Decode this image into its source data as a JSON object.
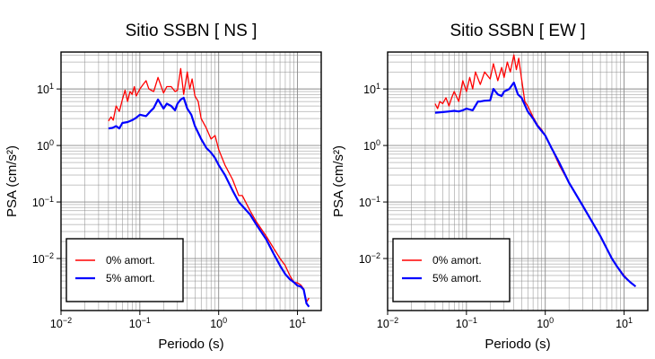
{
  "chart_data": [
    {
      "type": "line",
      "title": "Sitio SSBN [ NS ]",
      "xlabel": "Periodo (s)",
      "ylabel": "PSA (cm/s²)",
      "xscale": "log",
      "yscale": "log",
      "xlim": [
        0.01,
        20
      ],
      "ylim": [
        0.0012,
        45
      ],
      "grid": true,
      "legend_position": "bottom-left",
      "x_ticks": [
        {
          "value": 0.01,
          "base": "10",
          "exp": "−2"
        },
        {
          "value": 0.1,
          "base": "10",
          "exp": "−1"
        },
        {
          "value": 1,
          "base": "10",
          "exp": "0"
        },
        {
          "value": 10,
          "base": "10",
          "exp": "1"
        }
      ],
      "y_ticks": [
        {
          "value": 0.01,
          "base": "10",
          "exp": "−2"
        },
        {
          "value": 0.1,
          "base": "10",
          "exp": "−1"
        },
        {
          "value": 1,
          "base": "10",
          "exp": "0"
        },
        {
          "value": 10,
          "base": "10",
          "exp": "1"
        }
      ],
      "series": [
        {
          "name": "0% amort.",
          "color": "#ff0000",
          "x": [
            0.04,
            0.043,
            0.046,
            0.05,
            0.055,
            0.06,
            0.065,
            0.07,
            0.075,
            0.08,
            0.085,
            0.09,
            0.1,
            0.11,
            0.12,
            0.13,
            0.15,
            0.17,
            0.2,
            0.22,
            0.25,
            0.28,
            0.3,
            0.33,
            0.36,
            0.4,
            0.43,
            0.46,
            0.5,
            0.55,
            0.6,
            0.7,
            0.8,
            0.9,
            1.0,
            1.2,
            1.5,
            1.8,
            2.0,
            2.5,
            3.0,
            4.0,
            5.0,
            6.0,
            7.0,
            8.0,
            9.0,
            10.0,
            11.0,
            12.0,
            13.0,
            14.0
          ],
          "y": [
            2.7,
            3.2,
            2.8,
            5.0,
            4.0,
            6.5,
            9.5,
            6.0,
            9.0,
            8.0,
            11.0,
            7.5,
            10.0,
            12.0,
            14.0,
            10.0,
            9.0,
            16.0,
            8.5,
            11.0,
            11.0,
            9.0,
            9.5,
            23.0,
            8.0,
            20.0,
            10.0,
            15.0,
            7.5,
            6.0,
            3.0,
            2.0,
            1.3,
            1.5,
            0.85,
            0.45,
            0.25,
            0.13,
            0.13,
            0.07,
            0.045,
            0.025,
            0.015,
            0.01,
            0.0075,
            0.005,
            0.0038,
            0.0037,
            0.0034,
            0.0029,
            0.0017,
            0.002
          ]
        },
        {
          "name": "5% amort.",
          "color": "#0000ff",
          "x": [
            0.04,
            0.045,
            0.05,
            0.055,
            0.06,
            0.07,
            0.08,
            0.09,
            0.1,
            0.12,
            0.14,
            0.15,
            0.17,
            0.2,
            0.22,
            0.25,
            0.28,
            0.3,
            0.33,
            0.36,
            0.4,
            0.45,
            0.5,
            0.6,
            0.7,
            0.8,
            0.9,
            1.0,
            1.2,
            1.5,
            1.8,
            2.0,
            2.5,
            3.0,
            4.0,
            5.0,
            6.0,
            7.0,
            8.0,
            9.0,
            10.0,
            11.0,
            12.0,
            13.0,
            14.0
          ],
          "y": [
            2.0,
            2.05,
            2.2,
            2.0,
            2.5,
            2.6,
            2.8,
            3.1,
            3.5,
            3.3,
            4.2,
            4.6,
            6.5,
            4.5,
            5.5,
            5.0,
            4.2,
            5.5,
            6.5,
            7.0,
            4.5,
            3.5,
            2.2,
            1.3,
            0.9,
            0.75,
            0.6,
            0.45,
            0.3,
            0.16,
            0.1,
            0.085,
            0.06,
            0.04,
            0.022,
            0.012,
            0.0075,
            0.0053,
            0.0043,
            0.0038,
            0.0033,
            0.0032,
            0.0028,
            0.0016,
            0.0014
          ]
        }
      ]
    },
    {
      "type": "line",
      "title": "Sitio SSBN [ EW ]",
      "xlabel": "Periodo (s)",
      "ylabel": "PSA (cm/s²)",
      "xscale": "log",
      "yscale": "log",
      "xlim": [
        0.01,
        20
      ],
      "ylim": [
        0.0012,
        45
      ],
      "grid": true,
      "legend_position": "bottom-left",
      "x_ticks": [
        {
          "value": 0.01,
          "base": "10",
          "exp": "−2"
        },
        {
          "value": 0.1,
          "base": "10",
          "exp": "−1"
        },
        {
          "value": 1,
          "base": "10",
          "exp": "0"
        },
        {
          "value": 10,
          "base": "10",
          "exp": "1"
        }
      ],
      "y_ticks": [
        {
          "value": 0.01,
          "base": "10",
          "exp": "−2"
        },
        {
          "value": 0.1,
          "base": "10",
          "exp": "−1"
        },
        {
          "value": 1,
          "base": "10",
          "exp": "0"
        },
        {
          "value": 10,
          "base": "10",
          "exp": "1"
        }
      ],
      "series": [
        {
          "name": "0% amort.",
          "color": "#ff0000",
          "x": [
            0.04,
            0.043,
            0.046,
            0.05,
            0.055,
            0.06,
            0.065,
            0.07,
            0.08,
            0.09,
            0.1,
            0.11,
            0.12,
            0.13,
            0.15,
            0.17,
            0.2,
            0.22,
            0.25,
            0.28,
            0.3,
            0.33,
            0.36,
            0.4,
            0.43,
            0.46,
            0.5,
            0.55,
            0.6,
            0.7,
            0.8,
            0.9,
            1.0,
            1.2,
            1.5,
            2.0,
            3.0,
            5.0,
            7.0,
            8.0,
            10.0,
            12.0,
            14.0
          ],
          "y": [
            5.5,
            4.5,
            6.0,
            5.5,
            7.0,
            5.0,
            7.0,
            9.0,
            6.0,
            14.0,
            9.0,
            16.0,
            10.0,
            20.0,
            12.0,
            20.0,
            15.0,
            28.0,
            14.0,
            24.0,
            16.0,
            30.0,
            20.0,
            40.0,
            22.0,
            35.0,
            15.0,
            6.0,
            5.0,
            3.2,
            2.3,
            1.9,
            1.5,
            0.9,
            0.45,
            0.22,
            0.085,
            0.025,
            0.01,
            0.0075,
            0.005,
            0.0038,
            0.0032
          ]
        },
        {
          "name": "5% amort.",
          "color": "#0000ff",
          "x": [
            0.04,
            0.05,
            0.06,
            0.07,
            0.08,
            0.09,
            0.1,
            0.12,
            0.14,
            0.15,
            0.17,
            0.2,
            0.22,
            0.25,
            0.28,
            0.3,
            0.35,
            0.4,
            0.45,
            0.5,
            0.6,
            0.7,
            0.8,
            0.9,
            1.0,
            1.2,
            1.5,
            2.0,
            3.0,
            5.0,
            7.0,
            8.0,
            10.0,
            12.0,
            14.0
          ],
          "y": [
            3.8,
            3.9,
            4.0,
            4.1,
            4.0,
            4.2,
            4.5,
            4.2,
            6.0,
            6.0,
            6.2,
            6.3,
            10.0,
            8.0,
            7.5,
            9.0,
            10.0,
            13.0,
            8.0,
            7.0,
            4.0,
            3.0,
            2.2,
            1.8,
            1.5,
            0.9,
            0.5,
            0.22,
            0.085,
            0.025,
            0.01,
            0.0075,
            0.0048,
            0.0038,
            0.0032
          ]
        }
      ]
    }
  ]
}
